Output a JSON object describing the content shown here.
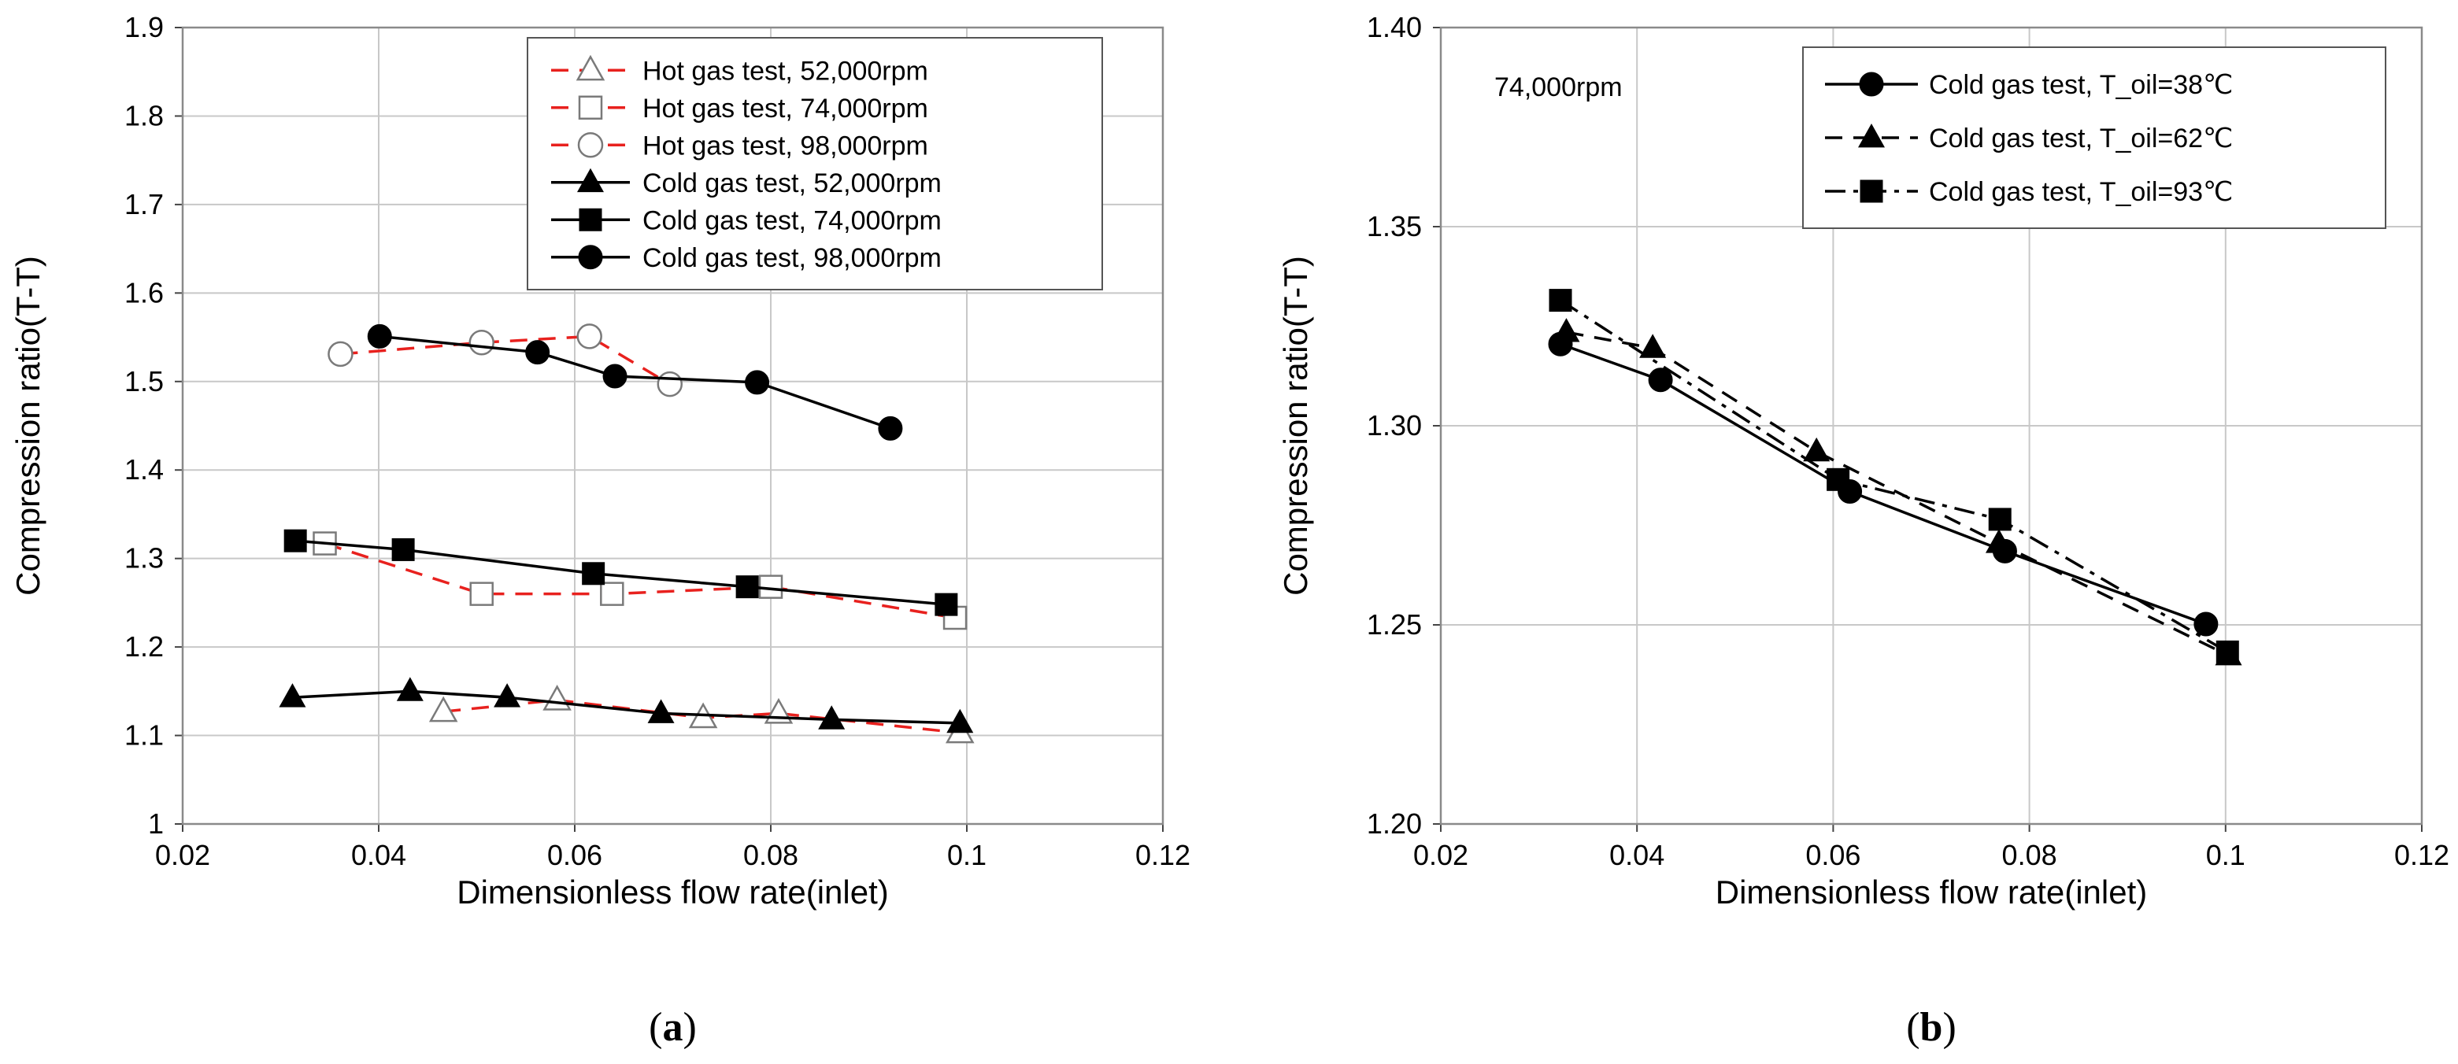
{
  "chart_data": [
    {
      "id": "a",
      "type": "line",
      "caption_open": "(",
      "caption_letter": "a",
      "caption_close": ")",
      "xlabel": "Dimensionless flow rate(inlet)",
      "ylabel": "Compression ratio(T-T)",
      "xlim": [
        0.02,
        0.12
      ],
      "ylim": [
        1.0,
        1.9
      ],
      "xticks": [
        0.02,
        0.04,
        0.06,
        0.08,
        0.1,
        0.12
      ],
      "xtick_labels": [
        "0.02",
        "0.04",
        "0.06",
        "0.08",
        "0.1",
        "0.12"
      ],
      "yticks": [
        1.0,
        1.1,
        1.2,
        1.3,
        1.4,
        1.5,
        1.6,
        1.7,
        1.8,
        1.9
      ],
      "ytick_labels": [
        "1",
        "1.1",
        "1.2",
        "1.3",
        "1.4",
        "1.5",
        "1.6",
        "1.7",
        "1.8",
        "1.9"
      ],
      "grid": "both",
      "legend_position": "top-right",
      "series": [
        {
          "name": "Hot gas test, 52,000rpm",
          "color": "#e8211e",
          "dash": "dash",
          "marker": "triangle-open",
          "x": [
            0.0466,
            0.0582,
            0.0731,
            0.0808,
            0.0993
          ],
          "y": [
            1.127,
            1.14,
            1.12,
            1.125,
            1.103
          ]
        },
        {
          "name": "Hot gas test, 74,000rpm",
          "color": "#e8211e",
          "dash": "dash",
          "marker": "square-open",
          "x": [
            0.0345,
            0.0505,
            0.0638,
            0.08,
            0.0988
          ],
          "y": [
            1.317,
            1.26,
            1.26,
            1.268,
            1.233
          ]
        },
        {
          "name": "Hot gas test, 98,000rpm",
          "color": "#e8211e",
          "dash": "dash",
          "marker": "circle-open",
          "x": [
            0.0361,
            0.0505,
            0.0615,
            0.0697
          ],
          "y": [
            1.531,
            1.544,
            1.551,
            1.497
          ]
        },
        {
          "name": "Cold gas test, 52,000rpm",
          "color": "#000000",
          "dash": "solid",
          "marker": "triangle",
          "x": [
            0.0312,
            0.0432,
            0.0531,
            0.0688,
            0.0862,
            0.0993
          ],
          "y": [
            1.143,
            1.15,
            1.143,
            1.125,
            1.118,
            1.114
          ]
        },
        {
          "name": "Cold gas test, 74,000rpm",
          "color": "#000000",
          "dash": "solid",
          "marker": "square",
          "x": [
            0.0315,
            0.0425,
            0.0619,
            0.0776,
            0.0979
          ],
          "y": [
            1.32,
            1.31,
            1.283,
            1.268,
            1.248
          ]
        },
        {
          "name": "Cold gas test, 98,000rpm",
          "color": "#000000",
          "dash": "solid",
          "marker": "circle",
          "x": [
            0.0401,
            0.0562,
            0.0641,
            0.0786,
            0.0922
          ],
          "y": [
            1.551,
            1.533,
            1.506,
            1.499,
            1.447
          ]
        }
      ]
    },
    {
      "id": "b",
      "type": "line",
      "caption_open": "(",
      "caption_letter": "b",
      "caption_close": ")",
      "annotation": "74,000rpm",
      "xlabel": "Dimensionless flow rate(inlet)",
      "ylabel": "Compression ratio(T-T)",
      "xlim": [
        0.02,
        0.12
      ],
      "ylim": [
        1.2,
        1.4
      ],
      "xticks": [
        0.02,
        0.04,
        0.06,
        0.08,
        0.1,
        0.12
      ],
      "xtick_labels": [
        "0.02",
        "0.04",
        "0.06",
        "0.08",
        "0.1",
        "0.12"
      ],
      "yticks": [
        1.2,
        1.25,
        1.3,
        1.35,
        1.4
      ],
      "ytick_labels": [
        "1.20",
        "1.25",
        "1.30",
        "1.35",
        "1.40"
      ],
      "grid": "both",
      "legend_position": "top-right",
      "series": [
        {
          "name": "Cold gas test, T_oil=38℃",
          "color": "#000000",
          "dash": "solid",
          "marker": "circle",
          "x": [
            0.0322,
            0.0424,
            0.0617,
            0.0775,
            0.098
          ],
          "y": [
            1.3205,
            1.3115,
            1.2835,
            1.2685,
            1.2502
          ]
        },
        {
          "name": "Cold gas test, T_oil=62℃",
          "color": "#000000",
          "dash": "dash",
          "marker": "triangle",
          "x": [
            0.0328,
            0.0416,
            0.0583,
            0.0769,
            0.1003
          ],
          "y": [
            1.3235,
            1.3195,
            1.2935,
            1.2705,
            1.2423
          ]
        },
        {
          "name": "Cold gas test, T_oil=93℃",
          "color": "#000000",
          "dash": "dashdot",
          "marker": "square",
          "x": [
            0.0322,
            0.0605,
            0.077,
            0.1002
          ],
          "y": [
            1.3315,
            1.2865,
            1.2765,
            1.2432
          ]
        }
      ]
    }
  ]
}
